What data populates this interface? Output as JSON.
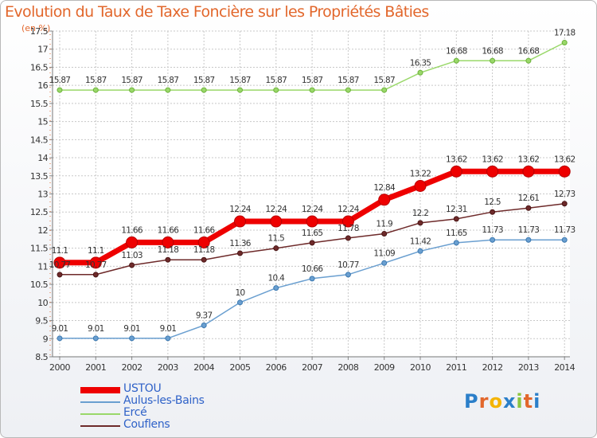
{
  "header": {
    "title": "Evolution du Taux de Taxe Foncière sur les Propriétés Bâties",
    "unit": "(en %)"
  },
  "brand": {
    "letters": [
      "P",
      "r",
      "o",
      "x",
      "i",
      "t",
      "i"
    ],
    "colors": [
      "#2b7fc9",
      "#e2672c",
      "#f4b400",
      "#2b7fc9",
      "#8bc53f",
      "#e2672c",
      "#2b7fc9"
    ]
  },
  "chart_data": {
    "type": "line",
    "title": "Evolution du Taux de Taxe Foncière sur les Propriétés Bâties",
    "ylabel": "(en %)",
    "xlabel": "",
    "ylim": [
      8.5,
      17.5
    ],
    "yticks": [
      "8.5",
      "9",
      "9.5",
      "10",
      "10.5",
      "11",
      "11.5",
      "12",
      "12.5",
      "13",
      "13.5",
      "14",
      "14.5",
      "15",
      "15.5",
      "16",
      "16.5",
      "17",
      "17.5"
    ],
    "x": [
      "2000",
      "2001",
      "2002",
      "2003",
      "2004",
      "2005",
      "2006",
      "2007",
      "2008",
      "2009",
      "2010",
      "2011",
      "2012",
      "2013",
      "2014"
    ],
    "grid": true,
    "legend": "bottom-left",
    "series": [
      {
        "name": "USTOU",
        "color": "#ee0000",
        "values": [
          11.1,
          11.1,
          11.66,
          11.66,
          11.66,
          12.24,
          12.24,
          12.24,
          12.24,
          12.84,
          13.22,
          13.62,
          13.62,
          13.62,
          13.62
        ],
        "labels": [
          "11.1",
          "11.1",
          "11.66",
          "11.66",
          "11.66",
          "12.24",
          "12.24",
          "12.24",
          "12.24",
          "12.84",
          "13.22",
          "13.62",
          "13.62",
          "13.62",
          "13.62"
        ]
      },
      {
        "name": "Aulus-les-Bains",
        "color": "#6a9fd0",
        "values": [
          9.01,
          9.01,
          9.01,
          9.01,
          9.37,
          10,
          10.4,
          10.66,
          10.77,
          11.09,
          11.42,
          11.65,
          11.73,
          11.73,
          11.73
        ],
        "labels": [
          "9.01",
          "9.01",
          "9.01",
          "9.01",
          "9.37",
          "10",
          "10.4",
          "10.66",
          "10.77",
          "11.09",
          "11.42",
          "11.65",
          "11.73",
          "11.73",
          "11.73"
        ]
      },
      {
        "name": "Ercé",
        "color": "#9ad86a",
        "values": [
          15.87,
          15.87,
          15.87,
          15.87,
          15.87,
          15.87,
          15.87,
          15.87,
          15.87,
          15.87,
          16.35,
          16.68,
          16.68,
          16.68,
          17.18
        ],
        "labels": [
          "15.87",
          "15.87",
          "15.87",
          "15.87",
          "15.87",
          "15.87",
          "15.87",
          "15.87",
          "15.87",
          "15.87",
          "16.35",
          "16.68",
          "16.68",
          "16.68",
          "17.18"
        ]
      },
      {
        "name": "Couflens",
        "color": "#6e2a2a",
        "values": [
          10.77,
          10.77,
          11.03,
          11.18,
          11.18,
          11.36,
          11.5,
          11.65,
          11.78,
          11.9,
          12.2,
          12.31,
          12.5,
          12.61,
          12.73
        ],
        "labels": [
          "10.77",
          "10.77",
          "11.03",
          "11.18",
          "11.18",
          "11.36",
          "11.5",
          "11.65",
          "11.78",
          "11.9",
          "12.2",
          "12.31",
          "12.5",
          "12.61",
          "12.73"
        ]
      }
    ]
  }
}
